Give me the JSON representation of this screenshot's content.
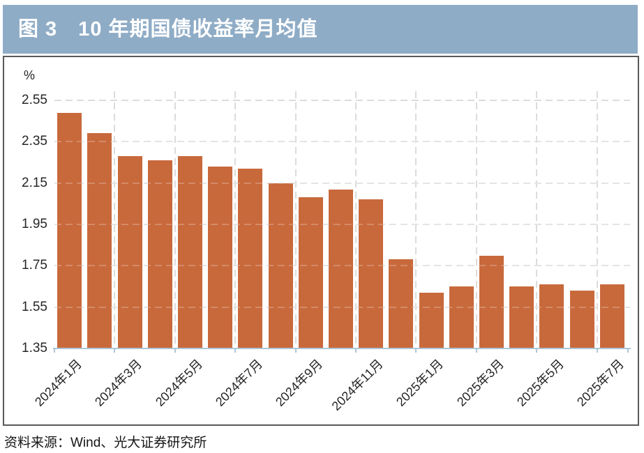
{
  "header": {
    "title": "图 3　10 年期国债收益率月均值"
  },
  "chart_data": {
    "type": "bar",
    "title": "10 年期国债收益率月均值",
    "unit_label": "%",
    "categories": [
      "2024年1月",
      "2024年2月",
      "2024年3月",
      "2024年4月",
      "2024年5月",
      "2024年6月",
      "2024年7月",
      "2024年8月",
      "2024年9月",
      "2024年10月",
      "2024年11月",
      "2024年12月",
      "2025年1月",
      "2025年2月",
      "2025年3月",
      "2025年4月",
      "2025年5月",
      "2025年6月",
      "2025年7月"
    ],
    "values": [
      2.49,
      2.39,
      2.28,
      2.26,
      2.28,
      2.23,
      2.22,
      2.15,
      2.08,
      2.12,
      2.07,
      1.78,
      1.62,
      1.65,
      1.8,
      1.65,
      1.66,
      1.63,
      1.66
    ],
    "x_tick_labels": [
      "2024年1月",
      "2024年3月",
      "2024年5月",
      "2024年7月",
      "2024年9月",
      "2024年11月",
      "2025年1月",
      "2025年3月",
      "2025年5月",
      "2025年7月"
    ],
    "y_ticks": [
      2.55,
      2.35,
      2.15,
      1.95,
      1.75,
      1.55,
      1.35
    ],
    "ylim": [
      1.35,
      2.55
    ],
    "grid": true,
    "legend": "none",
    "bar_color": "#C8693C"
  },
  "footer": {
    "source": "资料来源：Wind、光大证券研究所"
  },
  "colors": {
    "header_bg": "#8FACC6",
    "header_text": "#FFFFFF",
    "bar": "#C8693C",
    "grid": "#DCDCDC",
    "axis": "#AEC6D6",
    "text": "#262626",
    "panel_border": "#58595B",
    "footer_text": "#151515"
  }
}
